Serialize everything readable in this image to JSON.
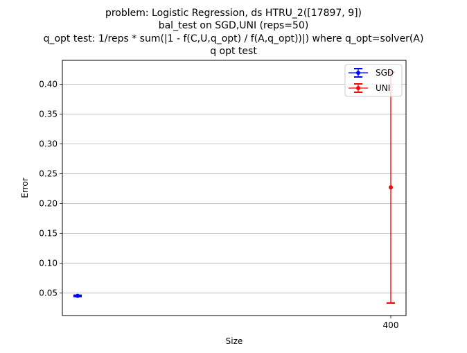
{
  "title_lines": [
    "problem: Logistic Regression, ds HTRU_2([17897, 9])",
    "bal_test on SGD,UNI (reps=50)",
    "q_opt test: 1/reps * sum(|1 - f(C,U,q_opt) / f(A,q_opt))|) where q_opt=solver(A)",
    "q opt test"
  ],
  "chart_data": {
    "type": "scatter",
    "title": "problem: Logistic Regression, ds HTRU_2([17897, 9])\nbal_test on SGD,UNI (reps=50)\nq_opt test: 1/reps * sum(|1 - f(C,U,q_opt) / f(A,q_opt))|) where q_opt=solver(A)\nq opt test",
    "xlabel": "Size",
    "ylabel": "Error",
    "x_ticks": [
      "400"
    ],
    "y_ticks": [
      "0.05",
      "0.10",
      "0.15",
      "0.20",
      "0.25",
      "0.30",
      "0.35",
      "0.40"
    ],
    "ylim": [
      0.012,
      0.44
    ],
    "grid": "horizontal",
    "legend_position": "top-right",
    "series": [
      {
        "name": "SGD",
        "color": "#0000ff",
        "x": 0,
        "y": 0.045,
        "yerr_low": 0.044,
        "yerr_high": 0.046
      },
      {
        "name": "UNI",
        "color": "#ff0000",
        "x": 400,
        "y": 0.227,
        "yerr_low": 0.033,
        "yerr_high": 0.42
      }
    ]
  }
}
